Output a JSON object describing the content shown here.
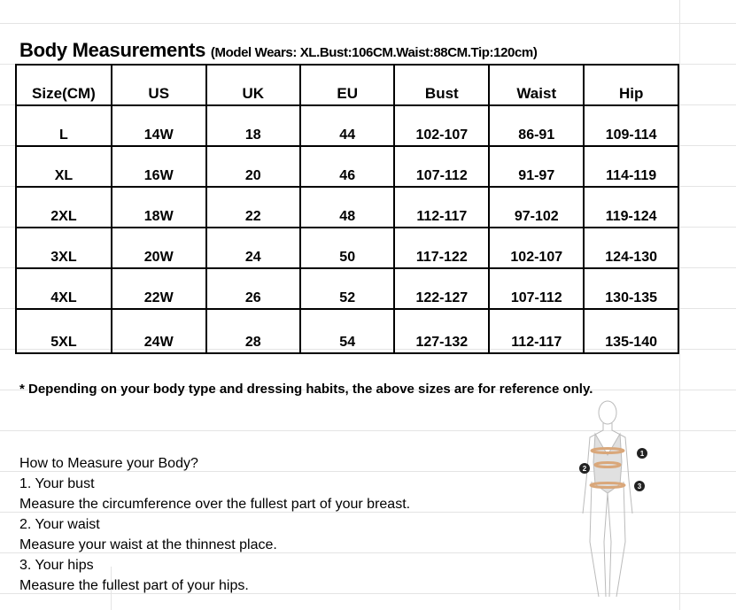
{
  "title": {
    "main": "Body Measurements",
    "sub": "(Model Wears: XL.Bust:106CM.Waist:88CM.Tip:120cm)"
  },
  "table": {
    "headers": [
      "Size(CM)",
      "US",
      "UK",
      "EU",
      "Bust",
      "Waist",
      "Hip"
    ],
    "rows": [
      [
        "L",
        "14W",
        "18",
        "44",
        "102-107",
        "86-91",
        "109-114"
      ],
      [
        "XL",
        "16W",
        "20",
        "46",
        "107-112",
        "91-97",
        "114-119"
      ],
      [
        "2XL",
        "18W",
        "22",
        "48",
        "112-117",
        "97-102",
        "119-124"
      ],
      [
        "3XL",
        "20W",
        "24",
        "50",
        "117-122",
        "102-107",
        "124-130"
      ],
      [
        "4XL",
        "22W",
        "26",
        "52",
        "122-127",
        "107-112",
        "130-135"
      ],
      [
        "5XL",
        "24W",
        "28",
        "54",
        "127-132",
        "112-117",
        "135-140"
      ]
    ]
  },
  "note": "* Depending on your body type and dressing habits, the above sizes are for reference only.",
  "howto": [
    "How to Measure your Body?",
    "1. Your bust",
    "Measure the circumference over the fullest part of your breast.",
    "2. Your waist",
    "Measure your waist at the thinnest place.",
    "3. Your hips",
    "Measure the fullest part of your hips."
  ],
  "figure": {
    "markers": [
      "1",
      "2",
      "3"
    ],
    "band_color": "#d9a77a"
  }
}
